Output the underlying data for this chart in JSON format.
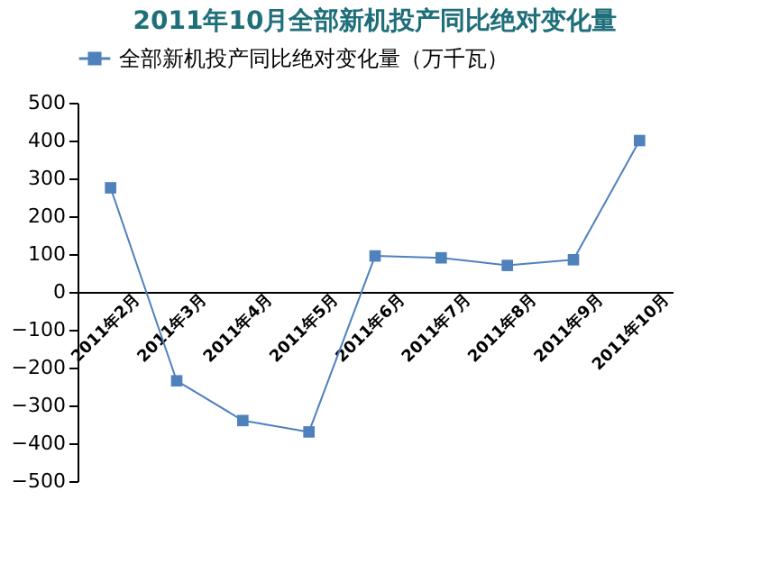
{
  "chart_data": {
    "type": "line",
    "title": "2011年10月全部新机投产同比绝对变化量",
    "categories": [
      "2011年2月",
      "2011年3月",
      "2011年4月",
      "2011年5月",
      "2011年6月",
      "2011年7月",
      "2011年8月",
      "2011年9月",
      "2011年10月"
    ],
    "series": [
      {
        "name": "全部新机投产同比绝对变化量（万千瓦）",
        "color": "#4f81bd",
        "values": [
          275,
          -235,
          -340,
          -370,
          95,
          90,
          70,
          85,
          400
        ]
      }
    ],
    "ylim": [
      -500,
      500
    ],
    "yticks": [
      -500,
      -400,
      -300,
      -200,
      -100,
      0,
      100,
      200,
      300,
      400,
      500
    ],
    "marker": "square",
    "legend": "top",
    "grid": false
  }
}
